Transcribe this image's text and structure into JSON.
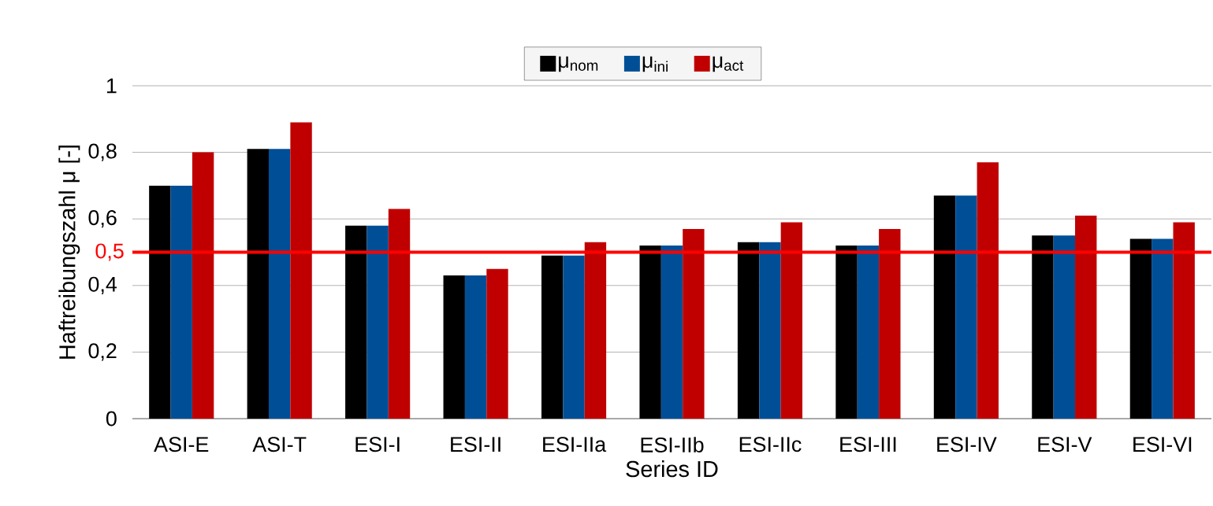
{
  "chart_data": {
    "type": "bar",
    "xlabel": "Series ID",
    "ylabel": "Haftreibungszahl μ [-]",
    "categories": [
      "ASI-E",
      "ASI-T",
      "ESI-I",
      "ESI-II",
      "ESI-IIa",
      "ESI-IIb",
      "ESI-IIc",
      "ESI-III",
      "ESI-IV",
      "ESI-V",
      "ESI-VI"
    ],
    "series": [
      {
        "name": "μ$_{nom}$",
        "color": "#000000",
        "values": [
          0.7,
          0.81,
          0.58,
          0.43,
          0.49,
          0.52,
          0.53,
          0.52,
          0.67,
          0.55,
          0.54
        ]
      },
      {
        "name": "μ$_{ini}$",
        "color": "#004f96",
        "values": [
          0.7,
          0.81,
          0.58,
          0.43,
          0.49,
          0.52,
          0.53,
          0.52,
          0.67,
          0.55,
          0.54
        ]
      },
      {
        "name": "μ$_{act}$",
        "color": "#c00000",
        "values": [
          0.8,
          0.89,
          0.63,
          0.45,
          0.53,
          0.57,
          0.59,
          0.57,
          0.77,
          0.61,
          0.59
        ]
      }
    ],
    "ylim": [
      0,
      1
    ],
    "yticks": [
      0,
      {
        "value": 0.2,
        "label": "0,2"
      },
      {
        "value": 0.4,
        "label": "0,4"
      },
      {
        "value": 0.6,
        "label": "0,6"
      },
      {
        "value": 0.8,
        "label": "0,8"
      },
      1
    ],
    "ref_lines": [
      {
        "axis": "y",
        "value": 0.5,
        "label": "0,5",
        "color": "#ff0000"
      }
    ],
    "grid": "y",
    "legend": "top"
  }
}
